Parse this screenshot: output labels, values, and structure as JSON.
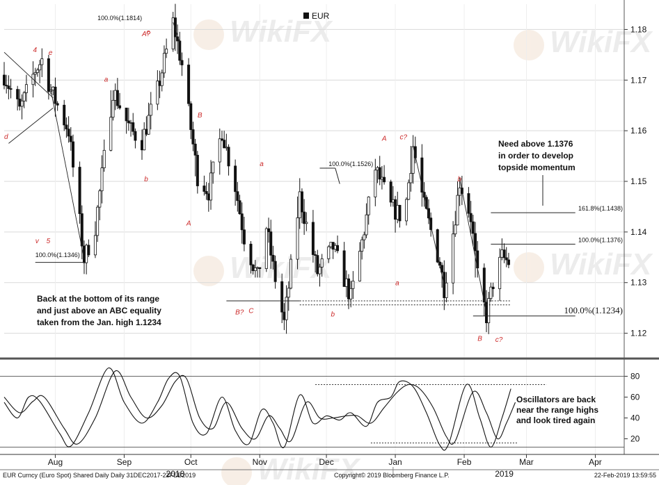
{
  "chart_data": [
    {
      "type": "candlestick",
      "title": "",
      "legend": {
        "label": "EUR",
        "placement": "top-center"
      },
      "ylim": [
        1.115,
        1.185
      ],
      "yticks": [
        1.12,
        1.13,
        1.14,
        1.15,
        1.16,
        1.17,
        1.18
      ],
      "ytick_labels": [
        "1.12",
        "1.13",
        "1.14",
        "1.15",
        "1.16",
        "1.17",
        "1.18"
      ],
      "x_range": [
        "2018-07-10",
        "2019-04-15"
      ],
      "x_months": [
        {
          "label": "Aug",
          "date": "2018-08-02"
        },
        {
          "label": "Sep",
          "date": "2018-09-02"
        },
        {
          "label": "Oct",
          "date": "2018-10-02"
        },
        {
          "label": "Nov",
          "date": "2018-11-02"
        },
        {
          "label": "Dec",
          "date": "2018-12-02"
        },
        {
          "label": "Jan",
          "date": "2019-01-02"
        },
        {
          "label": "Feb",
          "date": "2019-02-02"
        },
        {
          "label": "Mar",
          "date": "2019-03-02"
        },
        {
          "label": "Apr",
          "date": "2019-04-02"
        }
      ],
      "year_labels": [
        {
          "label": "2018",
          "date": "2018-09-25"
        },
        {
          "label": "2019",
          "date": "2019-02-20"
        }
      ],
      "price_path": [
        {
          "date": "2018-07-10",
          "price": 1.171
        },
        {
          "date": "2018-07-17",
          "price": 1.164
        },
        {
          "date": "2018-07-24",
          "price": 1.172
        },
        {
          "date": "2018-07-27",
          "price": 1.174
        },
        {
          "date": "2018-07-31",
          "price": 1.168
        },
        {
          "date": "2018-08-08",
          "price": 1.16
        },
        {
          "date": "2018-08-15",
          "price": 1.1346
        },
        {
          "date": "2018-08-20",
          "price": 1.141
        },
        {
          "date": "2018-08-28",
          "price": 1.168
        },
        {
          "date": "2018-09-05",
          "price": 1.16
        },
        {
          "date": "2018-09-10",
          "price": 1.158
        },
        {
          "date": "2018-09-17",
          "price": 1.168
        },
        {
          "date": "2018-09-24",
          "price": 1.1814
        },
        {
          "date": "2018-09-28",
          "price": 1.173
        },
        {
          "date": "2018-10-05",
          "price": 1.151
        },
        {
          "date": "2018-10-10",
          "price": 1.148
        },
        {
          "date": "2018-10-16",
          "price": 1.16
        },
        {
          "date": "2018-10-22",
          "price": 1.149
        },
        {
          "date": "2018-10-26",
          "price": 1.139
        },
        {
          "date": "2018-11-01",
          "price": 1.131
        },
        {
          "date": "2018-11-05",
          "price": 1.141
        },
        {
          "date": "2018-11-08",
          "price": 1.133
        },
        {
          "date": "2018-11-13",
          "price": 1.122
        },
        {
          "date": "2018-11-20",
          "price": 1.147
        },
        {
          "date": "2018-11-28",
          "price": 1.132
        },
        {
          "date": "2018-12-05",
          "price": 1.137
        },
        {
          "date": "2018-12-13",
          "price": 1.127
        },
        {
          "date": "2018-12-18",
          "price": 1.138
        },
        {
          "date": "2018-12-24",
          "price": 1.1526
        },
        {
          "date": "2018-12-31",
          "price": 1.145
        },
        {
          "date": "2019-01-06",
          "price": 1.1426
        },
        {
          "date": "2019-01-10",
          "price": 1.157
        },
        {
          "date": "2019-01-15",
          "price": 1.145
        },
        {
          "date": "2019-01-22",
          "price": 1.134
        },
        {
          "date": "2019-01-24",
          "price": 1.129
        },
        {
          "date": "2019-01-28",
          "price": 1.14
        },
        {
          "date": "2019-01-31",
          "price": 1.15
        },
        {
          "date": "2019-02-05",
          "price": 1.143
        },
        {
          "date": "2019-02-08",
          "price": 1.131
        },
        {
          "date": "2019-02-12",
          "price": 1.1234
        },
        {
          "date": "2019-02-15",
          "price": 1.13
        },
        {
          "date": "2019-02-19",
          "price": 1.135
        },
        {
          "date": "2019-02-22",
          "price": 1.134
        }
      ],
      "level_lines": [
        {
          "label": "161.8%(1.1438)",
          "price": 1.1438,
          "from": "2019-02-14",
          "to": "2019-03-24"
        },
        {
          "label": "100.0%(1.1376)",
          "price": 1.1376,
          "from": "2019-02-14",
          "to": "2019-03-24"
        },
        {
          "label": "100.0%(1.1234)",
          "price": 1.1234,
          "from": "2019-02-06",
          "to": "2019-03-24"
        },
        {
          "label": "",
          "price": 1.1264,
          "from": "2018-11-20",
          "to": "2019-02-23"
        },
        {
          "label": "",
          "price": 1.1256,
          "from": "2018-11-20",
          "to": "2019-02-23"
        }
      ],
      "level_tags": [
        {
          "label": "100.0%(1.1814)",
          "date": "2018-08-21",
          "price": 1.1814
        },
        {
          "label": "100.0%(1.1526)",
          "date": "2018-12-03",
          "price": 1.1526
        },
        {
          "label": "100.0%(1.1346)",
          "date": "2018-07-24",
          "price": 1.1346
        }
      ],
      "wave_labels": [
        {
          "text": "4",
          "date": "2018-07-23",
          "price": 1.1755
        },
        {
          "text": "e",
          "date": "2018-07-30",
          "price": 1.175
        },
        {
          "text": "d",
          "date": "2018-07-10",
          "price": 1.1584
        },
        {
          "text": "v",
          "date": "2018-07-24",
          "price": 1.1378
        },
        {
          "text": "5",
          "date": "2018-07-29",
          "price": 1.1378
        },
        {
          "text": "a",
          "date": "2018-08-24",
          "price": 1.1697
        },
        {
          "text": "b",
          "date": "2018-09-11",
          "price": 1.15
        },
        {
          "text": "A?",
          "date": "2018-09-10",
          "price": 1.1787
        },
        {
          "text": "c",
          "date": "2018-09-12",
          "price": 1.179
        },
        {
          "text": "B",
          "date": "2018-10-05",
          "price": 1.1626
        },
        {
          "text": "A",
          "date": "2018-09-30",
          "price": 1.1413
        },
        {
          "text": "a",
          "date": "2018-11-02",
          "price": 1.153
        },
        {
          "text": "B?",
          "date": "2018-10-22",
          "price": 1.1237
        },
        {
          "text": "C",
          "date": "2018-10-28",
          "price": 1.124
        },
        {
          "text": "b",
          "date": "2018-12-04",
          "price": 1.1233
        },
        {
          "text": "A",
          "date": "2018-12-27",
          "price": 1.158
        },
        {
          "text": "c?",
          "date": "2019-01-04",
          "price": 1.1583
        },
        {
          "text": "a",
          "date": "2019-01-02",
          "price": 1.1295
        },
        {
          "text": "b",
          "date": "2019-01-30",
          "price": 1.15
        },
        {
          "text": "B",
          "date": "2019-02-08",
          "price": 1.1185
        },
        {
          "text": "c?",
          "date": "2019-02-16",
          "price": 1.1183
        }
      ],
      "annotations": [
        {
          "lines": [
            "Need above 1.1376",
            "in  order to develop",
            "topside momentum"
          ]
        },
        {
          "lines": [
            "Back at the bottom of  its range",
            "and just above an ABC equality",
            "taken from the Jan. high 1.1234"
          ]
        }
      ]
    },
    {
      "type": "line",
      "ylim": [
        5,
        95
      ],
      "yticks": [
        20,
        40,
        60,
        80
      ],
      "ytick_labels": [
        "20",
        "40",
        "60",
        "80"
      ],
      "guide_lines": [
        80,
        12
      ],
      "dotted_lines": [
        {
          "value": 72,
          "from": "2018-11-27",
          "to": "2019-03-11"
        },
        {
          "value": 16,
          "from": "2018-12-22",
          "to": "2019-02-26"
        }
      ],
      "series": [
        {
          "name": "",
          "points": [
            {
              "date": "2018-07-10",
              "value": 55
            },
            {
              "date": "2018-07-16",
              "value": 40
            },
            {
              "date": "2018-07-21",
              "value": 60
            },
            {
              "date": "2018-07-26",
              "value": 56
            },
            {
              "date": "2018-08-04",
              "value": 25
            },
            {
              "date": "2018-08-09",
              "value": 13
            },
            {
              "date": "2018-08-17",
              "value": 45
            },
            {
              "date": "2018-08-26",
              "value": 88
            },
            {
              "date": "2018-09-02",
              "value": 55
            },
            {
              "date": "2018-09-10",
              "value": 35
            },
            {
              "date": "2018-09-17",
              "value": 55
            },
            {
              "date": "2018-09-22",
              "value": 78
            },
            {
              "date": "2018-09-27",
              "value": 80
            },
            {
              "date": "2018-10-03",
              "value": 35
            },
            {
              "date": "2018-10-09",
              "value": 25
            },
            {
              "date": "2018-10-16",
              "value": 60
            },
            {
              "date": "2018-10-22",
              "value": 28
            },
            {
              "date": "2018-10-28",
              "value": 15
            },
            {
              "date": "2018-11-03",
              "value": 48
            },
            {
              "date": "2018-11-08",
              "value": 35
            },
            {
              "date": "2018-11-13",
              "value": 12
            },
            {
              "date": "2018-11-20",
              "value": 62
            },
            {
              "date": "2018-11-26",
              "value": 35
            },
            {
              "date": "2018-12-02",
              "value": 42
            },
            {
              "date": "2018-12-08",
              "value": 38
            },
            {
              "date": "2018-12-13",
              "value": 45
            },
            {
              "date": "2018-12-20",
              "value": 32
            },
            {
              "date": "2018-12-25",
              "value": 55
            },
            {
              "date": "2018-12-31",
              "value": 60
            },
            {
              "date": "2019-01-04",
              "value": 75
            },
            {
              "date": "2019-01-10",
              "value": 70
            },
            {
              "date": "2019-01-16",
              "value": 45
            },
            {
              "date": "2019-01-22",
              "value": 14
            },
            {
              "date": "2019-01-26",
              "value": 15
            },
            {
              "date": "2019-02-03",
              "value": 72
            },
            {
              "date": "2019-02-09",
              "value": 40
            },
            {
              "date": "2019-02-14",
              "value": 12
            },
            {
              "date": "2019-02-19",
              "value": 40
            },
            {
              "date": "2019-02-23",
              "value": 68
            }
          ]
        },
        {
          "name": "",
          "points": [
            {
              "date": "2018-07-10",
              "value": 60
            },
            {
              "date": "2018-07-17",
              "value": 45
            },
            {
              "date": "2018-07-23",
              "value": 56
            },
            {
              "date": "2018-07-28",
              "value": 60
            },
            {
              "date": "2018-08-06",
              "value": 30
            },
            {
              "date": "2018-08-12",
              "value": 15
            },
            {
              "date": "2018-08-20",
              "value": 40
            },
            {
              "date": "2018-08-29",
              "value": 85
            },
            {
              "date": "2018-09-05",
              "value": 60
            },
            {
              "date": "2018-09-12",
              "value": 40
            },
            {
              "date": "2018-09-19",
              "value": 52
            },
            {
              "date": "2018-09-25",
              "value": 75
            },
            {
              "date": "2018-09-30",
              "value": 78
            },
            {
              "date": "2018-10-06",
              "value": 40
            },
            {
              "date": "2018-10-12",
              "value": 30
            },
            {
              "date": "2018-10-18",
              "value": 55
            },
            {
              "date": "2018-10-25",
              "value": 30
            },
            {
              "date": "2018-10-31",
              "value": 20
            },
            {
              "date": "2018-11-06",
              "value": 42
            },
            {
              "date": "2018-11-11",
              "value": 30
            },
            {
              "date": "2018-11-16",
              "value": 18
            },
            {
              "date": "2018-11-23",
              "value": 55
            },
            {
              "date": "2018-11-29",
              "value": 40
            },
            {
              "date": "2018-12-05",
              "value": 40
            },
            {
              "date": "2018-12-11",
              "value": 42
            },
            {
              "date": "2018-12-16",
              "value": 42
            },
            {
              "date": "2018-12-22",
              "value": 35
            },
            {
              "date": "2018-12-28",
              "value": 50
            },
            {
              "date": "2019-01-03",
              "value": 65
            },
            {
              "date": "2019-01-08",
              "value": 72
            },
            {
              "date": "2019-01-13",
              "value": 68
            },
            {
              "date": "2019-01-19",
              "value": 50
            },
            {
              "date": "2019-01-25",
              "value": 22
            },
            {
              "date": "2019-01-29",
              "value": 18
            },
            {
              "date": "2019-02-06",
              "value": 65
            },
            {
              "date": "2019-02-12",
              "value": 45
            },
            {
              "date": "2019-02-17",
              "value": 20
            },
            {
              "date": "2019-02-21",
              "value": 35
            },
            {
              "date": "2019-02-25",
              "value": 55
            }
          ]
        }
      ],
      "annotations": [
        {
          "lines": [
            "Oscillators are back",
            "near the range highs",
            "and look tired again"
          ]
        }
      ]
    }
  ],
  "footer": {
    "left": "EUR Curncy (Euro Spot) Shared Daily  Daily 31DEC2017-22FEB2019",
    "center": "Copyright© 2019 Bloomberg Finance L.P.",
    "right": "22-Feb-2019 13:59:55"
  },
  "watermark": {
    "text": "WikiFX"
  },
  "colors": {
    "price": "#111111",
    "wave_label": "#cc2a2a",
    "grid": "#d9d9d9",
    "panel_border": "#555555",
    "watermark": "#d6a777"
  }
}
